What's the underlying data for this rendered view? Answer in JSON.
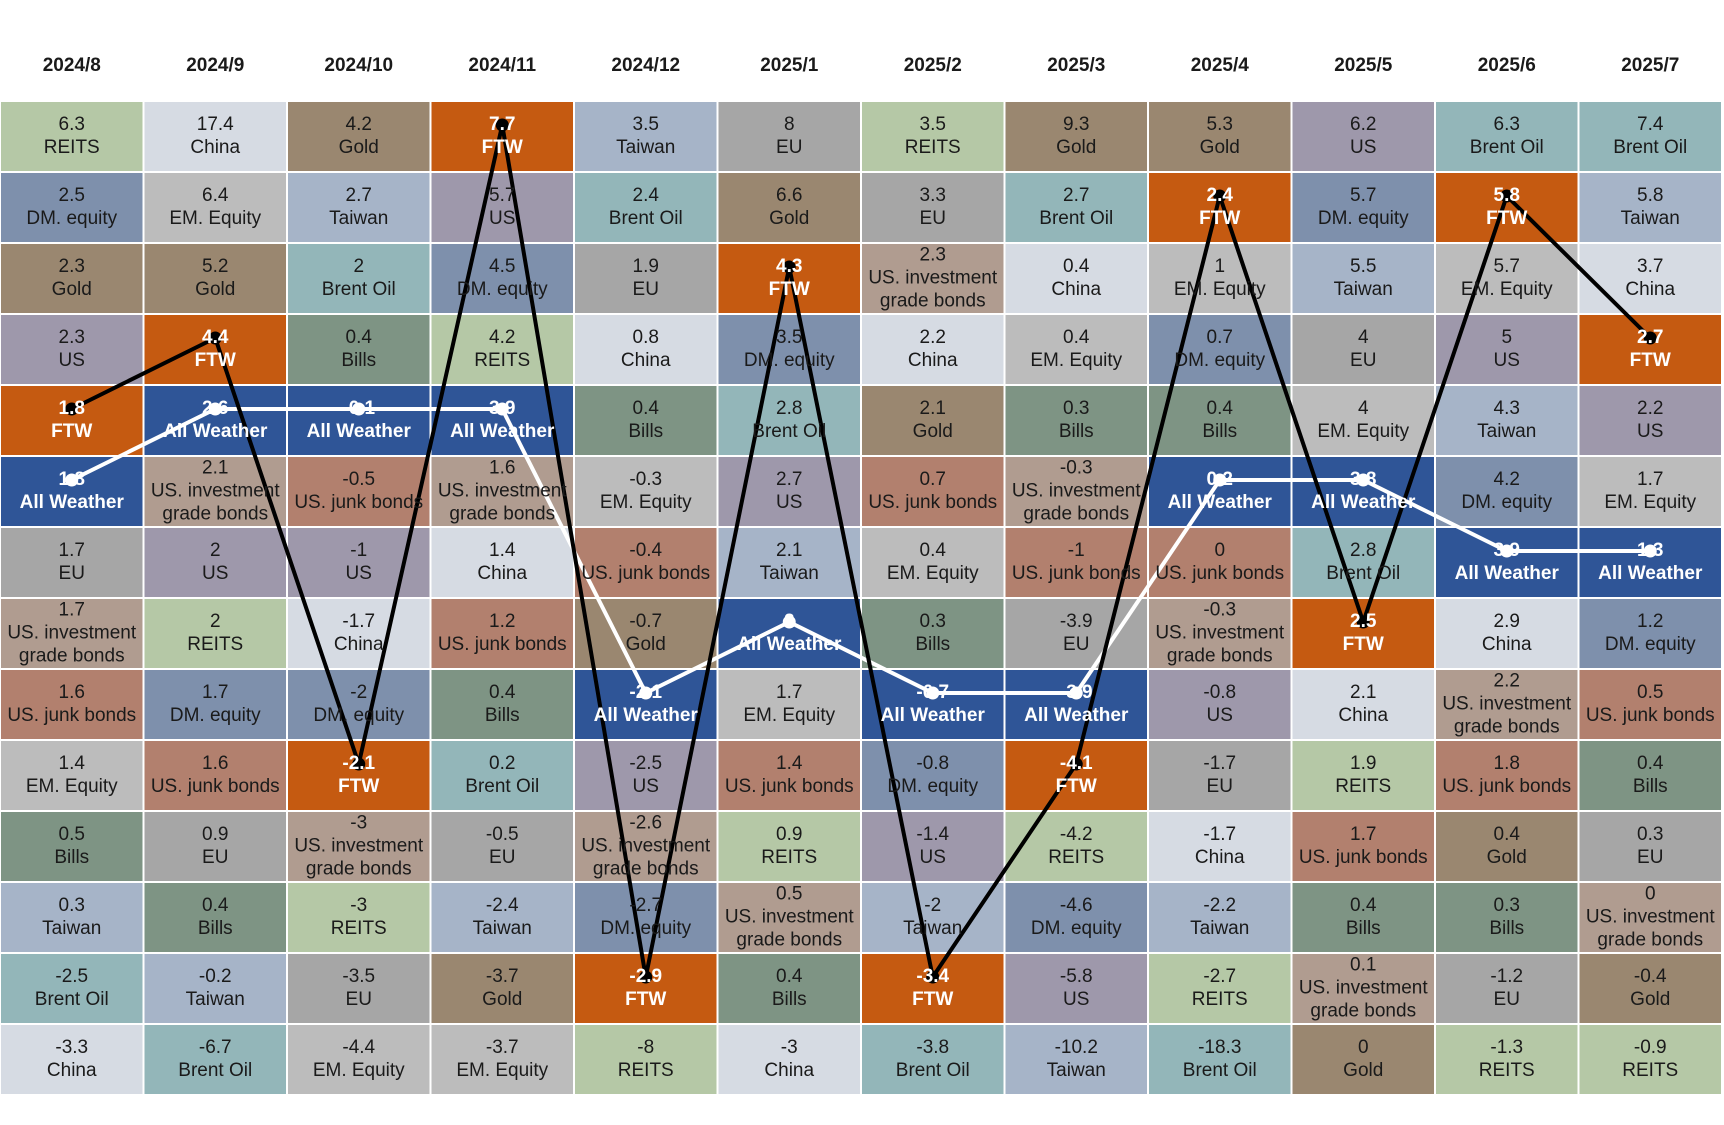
{
  "chart_data": {
    "type": "heatmap",
    "months": [
      "2024/8",
      "2024/9",
      "2024/10",
      "2024/11",
      "2024/12",
      "2025/1",
      "2025/2",
      "2025/3",
      "2025/4",
      "2025/5",
      "2025/6",
      "2025/7"
    ],
    "columns": [
      [
        [
          6.3,
          "REITS"
        ],
        [
          2.5,
          "DM. equity"
        ],
        [
          2.3,
          "Gold"
        ],
        [
          2.3,
          "US"
        ],
        [
          1.8,
          "FTW"
        ],
        [
          1.8,
          "All Weather"
        ],
        [
          1.7,
          "EU"
        ],
        [
          1.7,
          "US. investment grade bonds"
        ],
        [
          1.6,
          "US. junk bonds"
        ],
        [
          1.4,
          "EM. Equity"
        ],
        [
          0.5,
          "Bills"
        ],
        [
          0.3,
          "Taiwan"
        ],
        [
          -2.5,
          "Brent Oil"
        ],
        [
          -3.3,
          "China"
        ]
      ],
      [
        [
          17.4,
          "China"
        ],
        [
          6.4,
          "EM. Equity"
        ],
        [
          5.2,
          "Gold"
        ],
        [
          4.4,
          "FTW"
        ],
        [
          2.6,
          "All Weather"
        ],
        [
          2.1,
          "US. investment grade bonds"
        ],
        [
          2,
          "US"
        ],
        [
          2,
          "REITS"
        ],
        [
          1.7,
          "DM. equity"
        ],
        [
          1.6,
          "US. junk bonds"
        ],
        [
          0.9,
          "EU"
        ],
        [
          0.4,
          "Bills"
        ],
        [
          -0.2,
          "Taiwan"
        ],
        [
          -6.7,
          "Brent Oil"
        ]
      ],
      [
        [
          4.2,
          "Gold"
        ],
        [
          2.7,
          "Taiwan"
        ],
        [
          2,
          "Brent Oil"
        ],
        [
          0.4,
          "Bills"
        ],
        [
          -0.1,
          "All Weather"
        ],
        [
          -0.5,
          "US. junk bonds"
        ],
        [
          -1,
          "US"
        ],
        [
          -1.7,
          "China"
        ],
        [
          -2,
          "DM. equity"
        ],
        [
          -2.1,
          "FTW"
        ],
        [
          -3,
          "US. investment grade bonds"
        ],
        [
          -3,
          "REITS"
        ],
        [
          -3.5,
          "EU"
        ],
        [
          -4.4,
          "EM. Equity"
        ]
      ],
      [
        [
          7.7,
          "FTW"
        ],
        [
          5.7,
          "US"
        ],
        [
          4.5,
          "DM. equity"
        ],
        [
          4.2,
          "REITS"
        ],
        [
          3.9,
          "All Weather"
        ],
        [
          1.6,
          "US. investment grade bonds"
        ],
        [
          1.4,
          "China"
        ],
        [
          1.2,
          "US. junk bonds"
        ],
        [
          0.4,
          "Bills"
        ],
        [
          0.2,
          "Brent Oil"
        ],
        [
          -0.5,
          "EU"
        ],
        [
          -2.4,
          "Taiwan"
        ],
        [
          -3.7,
          "Gold"
        ],
        [
          -3.7,
          "EM. Equity"
        ]
      ],
      [
        [
          3.5,
          "Taiwan"
        ],
        [
          2.4,
          "Brent Oil"
        ],
        [
          1.9,
          "EU"
        ],
        [
          0.8,
          "China"
        ],
        [
          0.4,
          "Bills"
        ],
        [
          -0.3,
          "EM. Equity"
        ],
        [
          -0.4,
          "US. junk bonds"
        ],
        [
          -0.7,
          "Gold"
        ],
        [
          -2.1,
          "All Weather"
        ],
        [
          -2.5,
          "US"
        ],
        [
          -2.6,
          "US. investment grade bonds"
        ],
        [
          -2.7,
          "DM. equity"
        ],
        [
          -2.9,
          "FTW"
        ],
        [
          -8,
          "REITS"
        ]
      ],
      [
        [
          8,
          "EU"
        ],
        [
          6.6,
          "Gold"
        ],
        [
          4.3,
          "FTW"
        ],
        [
          3.5,
          "DM. equity"
        ],
        [
          2.8,
          "Brent Oil"
        ],
        [
          2.7,
          "US"
        ],
        [
          2.1,
          "Taiwan"
        ],
        [
          2,
          "All Weather"
        ],
        [
          1.7,
          "EM. Equity"
        ],
        [
          1.4,
          "US. junk bonds"
        ],
        [
          0.9,
          "REITS"
        ],
        [
          0.5,
          "US. investment grade bonds"
        ],
        [
          0.4,
          "Bills"
        ],
        [
          -3,
          "China"
        ]
      ],
      [
        [
          3.5,
          "REITS"
        ],
        [
          3.3,
          "EU"
        ],
        [
          2.3,
          "US. investment grade bonds"
        ],
        [
          2.2,
          "China"
        ],
        [
          2.1,
          "Gold"
        ],
        [
          0.7,
          "US. junk bonds"
        ],
        [
          0.4,
          "EM. Equity"
        ],
        [
          0.3,
          "Bills"
        ],
        [
          -0.7,
          "All Weather"
        ],
        [
          -0.8,
          "DM. equity"
        ],
        [
          -1.4,
          "US"
        ],
        [
          -2,
          "Taiwan"
        ],
        [
          -3.4,
          "FTW"
        ],
        [
          -3.8,
          "Brent Oil"
        ]
      ],
      [
        [
          9.3,
          "Gold"
        ],
        [
          2.7,
          "Brent Oil"
        ],
        [
          0.4,
          "China"
        ],
        [
          0.4,
          "EM. Equity"
        ],
        [
          0.3,
          "Bills"
        ],
        [
          -0.3,
          "US. investment grade bonds"
        ],
        [
          -1,
          "US. junk bonds"
        ],
        [
          -3.9,
          "EU"
        ],
        [
          -3.9,
          "All Weather"
        ],
        [
          -4.1,
          "FTW"
        ],
        [
          -4.2,
          "REITS"
        ],
        [
          -4.6,
          "DM. equity"
        ],
        [
          -5.8,
          "US"
        ],
        [
          -10.2,
          "Taiwan"
        ]
      ],
      [
        [
          5.3,
          "Gold"
        ],
        [
          2.4,
          "FTW"
        ],
        [
          1,
          "EM. Equity"
        ],
        [
          0.7,
          "DM. equity"
        ],
        [
          0.4,
          "Bills"
        ],
        [
          0.2,
          "All Weather"
        ],
        [
          0,
          "US. junk bonds"
        ],
        [
          -0.3,
          "US. investment grade bonds"
        ],
        [
          -0.8,
          "US"
        ],
        [
          -1.7,
          "EU"
        ],
        [
          -1.7,
          "China"
        ],
        [
          -2.2,
          "Taiwan"
        ],
        [
          -2.7,
          "REITS"
        ],
        [
          -18.3,
          "Brent Oil"
        ]
      ],
      [
        [
          6.2,
          "US"
        ],
        [
          5.7,
          "DM. equity"
        ],
        [
          5.5,
          "Taiwan"
        ],
        [
          4,
          "EU"
        ],
        [
          4,
          "EM. Equity"
        ],
        [
          3.8,
          "All Weather"
        ],
        [
          2.8,
          "Brent Oil"
        ],
        [
          2.5,
          "FTW"
        ],
        [
          2.1,
          "China"
        ],
        [
          1.9,
          "REITS"
        ],
        [
          1.7,
          "US. junk bonds"
        ],
        [
          0.4,
          "Bills"
        ],
        [
          0.1,
          "US. investment grade bonds"
        ],
        [
          0,
          "Gold"
        ]
      ],
      [
        [
          6.3,
          "Brent Oil"
        ],
        [
          5.8,
          "FTW"
        ],
        [
          5.7,
          "EM. Equity"
        ],
        [
          5,
          "US"
        ],
        [
          4.3,
          "Taiwan"
        ],
        [
          4.2,
          "DM. equity"
        ],
        [
          3.9,
          "All Weather"
        ],
        [
          2.9,
          "China"
        ],
        [
          2.2,
          "US. investment grade bonds"
        ],
        [
          1.8,
          "US. junk bonds"
        ],
        [
          0.4,
          "Gold"
        ],
        [
          0.3,
          "Bills"
        ],
        [
          -1.2,
          "EU"
        ],
        [
          -1.3,
          "REITS"
        ]
      ],
      [
        [
          7.4,
          "Brent Oil"
        ],
        [
          5.8,
          "Taiwan"
        ],
        [
          3.7,
          "China"
        ],
        [
          2.7,
          "FTW"
        ],
        [
          2.2,
          "US"
        ],
        [
          1.7,
          "EM. Equity"
        ],
        [
          1.3,
          "All Weather"
        ],
        [
          1.2,
          "DM. equity"
        ],
        [
          0.5,
          "US. junk bonds"
        ],
        [
          0.4,
          "Bills"
        ],
        [
          0.3,
          "EU"
        ],
        [
          0,
          "US. investment grade bonds"
        ],
        [
          -0.4,
          "Gold"
        ],
        [
          -0.9,
          "REITS"
        ]
      ]
    ],
    "line_series": [
      "FTW",
      "All Weather"
    ],
    "legend": "none"
  },
  "colors": {
    "REITS": "#b5c8a6",
    "DM. equity": "#7e90ac",
    "Gold": "#9a8770",
    "US": "#9e98ab",
    "FTW": "#c55a11",
    "All Weather": "#2f5597",
    "EU": "#a6a6a6",
    "US. investment grade bonds": "#b09c90",
    "US. junk bonds": "#b2806e",
    "EM. Equity": "#bcbcbc",
    "Bills": "#7e9484",
    "Taiwan": "#a6b4c8",
    "Brent Oil": "#93b6b9",
    "China": "#d6dbe3",
    "ftw_line": "#000000",
    "allweather_line": "#ffffff",
    "grid_line": "#ffffff",
    "header_text": "#1a1a1a",
    "cell_text": "#1a1a1a",
    "highlight_text": "#ffffff"
  }
}
